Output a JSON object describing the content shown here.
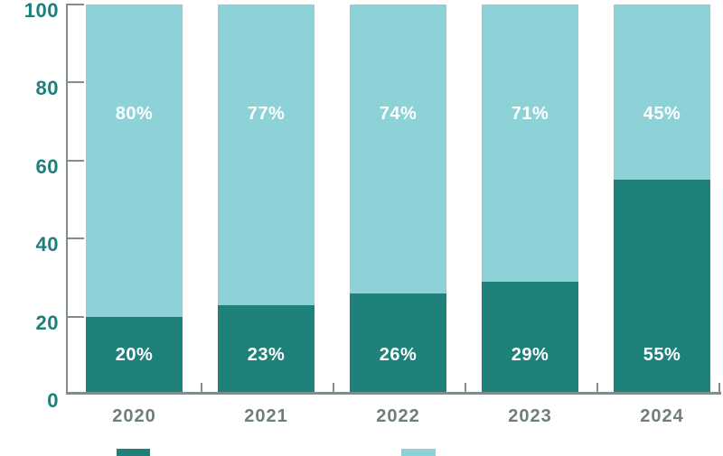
{
  "chart_data": {
    "type": "bar",
    "stacked": true,
    "title": "",
    "categories": [
      "2020",
      "2021",
      "2022",
      "2023",
      "2024"
    ],
    "series": [
      {
        "name": "bottom-segment-dark-teal",
        "color": "#1E827B",
        "values": [
          20,
          23,
          26,
          29,
          55
        ],
        "labels": [
          "20%",
          "23%",
          "26%",
          "29%",
          "55%"
        ]
      },
      {
        "name": "top-segment-light-teal",
        "color": "#8CD2D6",
        "values": [
          80,
          77,
          74,
          71,
          45
        ],
        "labels": [
          "80%",
          "77%",
          "74%",
          "71%",
          "45%"
        ]
      }
    ],
    "xlabel": "",
    "ylabel": "",
    "ylim": [
      0,
      100
    ],
    "yticks": [
      0,
      20,
      40,
      60,
      80,
      100
    ],
    "ytick_labels": [
      "0",
      "20",
      "40",
      "60",
      "80",
      "100"
    ],
    "grid": false,
    "legend_position": "bottom",
    "legend": [
      {
        "swatch": "dark-teal",
        "color": "#1E827B",
        "label": ""
      },
      {
        "swatch": "light-teal",
        "color": "#8CD2D6",
        "label": ""
      }
    ]
  },
  "colors": {
    "axis_line": "#7F8E8D",
    "y_tick_label": "#1B7F7B",
    "x_tick_label": "#6E7D7D",
    "bar_value_label": "#FFFFFF",
    "background": "#FFFFFF"
  }
}
